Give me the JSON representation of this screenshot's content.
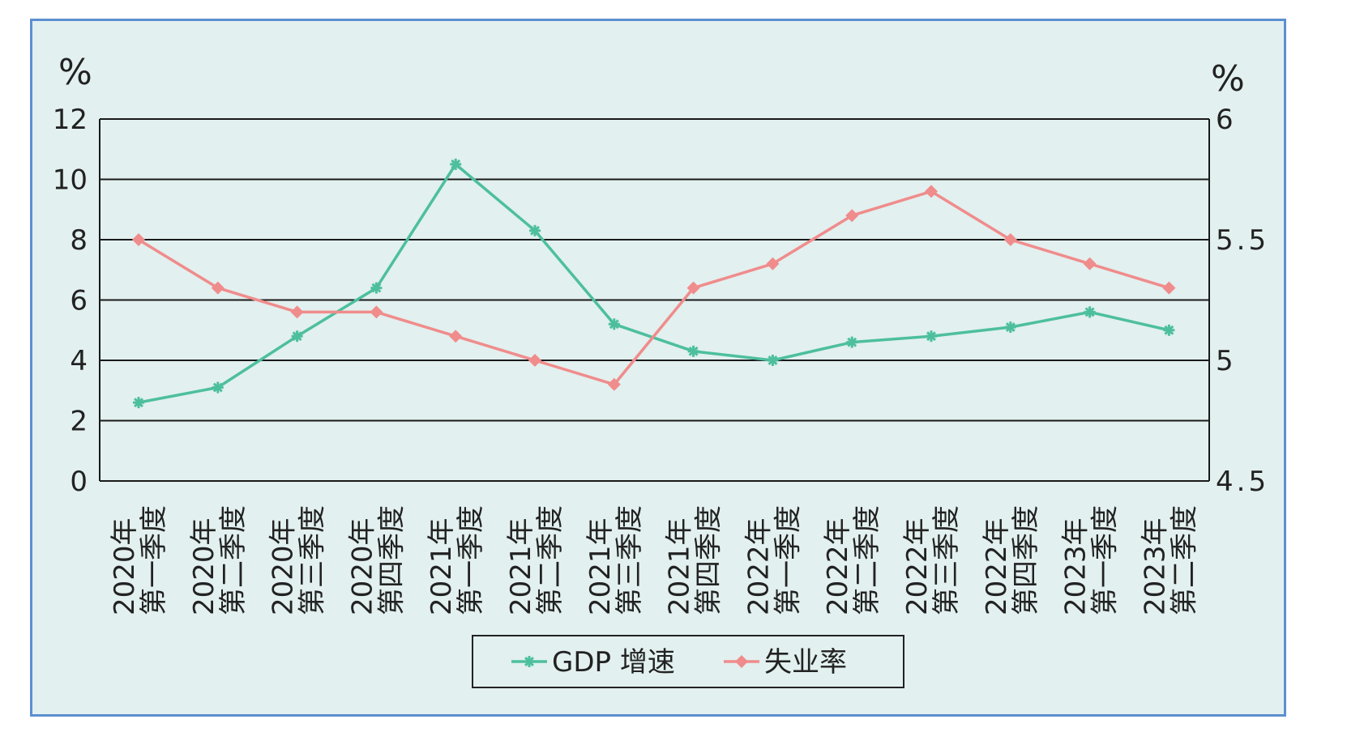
{
  "chart_data": {
    "type": "line",
    "categories": [
      [
        "2020年",
        "第一季度"
      ],
      [
        "2020年",
        "第二季度"
      ],
      [
        "2020年",
        "第三季度"
      ],
      [
        "2020年",
        "第四季度"
      ],
      [
        "2021年",
        "第一季度"
      ],
      [
        "2021年",
        "第二季度"
      ],
      [
        "2021年",
        "第三季度"
      ],
      [
        "2021年",
        "第四季度"
      ],
      [
        "2022年",
        "第一季度"
      ],
      [
        "2022年",
        "第二季度"
      ],
      [
        "2022年",
        "第三季度"
      ],
      [
        "2022年",
        "第四季度"
      ],
      [
        "2023年",
        "第一季度"
      ],
      [
        "2023年",
        "第二季度"
      ]
    ],
    "series": [
      {
        "name": "GDP 增速",
        "axis": "left",
        "color": "#4dbf9d",
        "marker": "asterisk",
        "values": [
          2.6,
          3.1,
          4.8,
          6.4,
          10.5,
          8.3,
          5.2,
          4.3,
          4.0,
          4.6,
          4.8,
          5.1,
          5.6,
          5.0
        ]
      },
      {
        "name": "失业率",
        "axis": "right",
        "color": "#f08c8c",
        "marker": "diamond",
        "values": [
          5.5,
          5.3,
          5.2,
          5.2,
          5.1,
          5.0,
          4.9,
          5.3,
          5.4,
          5.6,
          5.7,
          5.5,
          5.4,
          5.3
        ]
      }
    ],
    "left_axis": {
      "unit": "%",
      "ylim": [
        0,
        12
      ],
      "ticks": [
        "0",
        "2",
        "4",
        "6",
        "8",
        "10",
        "12"
      ]
    },
    "right_axis": {
      "unit": "%",
      "ylim": [
        4.5,
        6
      ],
      "ticks": [
        {
          "value": 4.5,
          "label": "4.5"
        },
        {
          "value": 5,
          "label": "5"
        },
        {
          "value": 5.5,
          "label": "5.5"
        },
        {
          "value": 6,
          "label": "6"
        }
      ]
    },
    "grid": true,
    "legend": {
      "position": "bottom-center",
      "entries": [
        "GDP 增速",
        "失业率"
      ]
    },
    "title": "",
    "xlabel": ""
  }
}
